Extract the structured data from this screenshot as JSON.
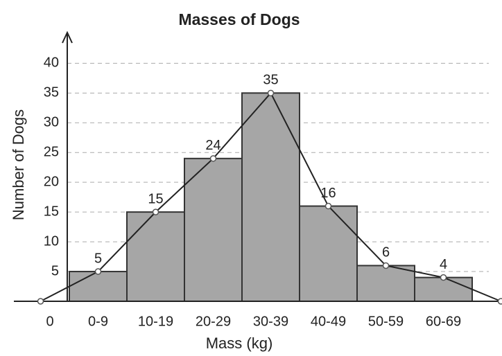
{
  "chart_data": {
    "type": "bar",
    "title": "Masses of Dogs",
    "x_label": "Mass (kg)",
    "y_label": "Number of Dogs",
    "categories": [
      "0",
      "0-9",
      "10-19",
      "20-29",
      "30-39",
      "40-49",
      "50-59",
      "60-69",
      null
    ],
    "values": [
      null,
      5,
      15,
      24,
      35,
      16,
      6,
      4,
      null
    ],
    "line_values": [
      0,
      5,
      15,
      24,
      35,
      16,
      6,
      4,
      0
    ],
    "color": "#a6a6a6",
    "ylim": [
      0,
      44
    ],
    "yticks": [
      5,
      10,
      15,
      20,
      25,
      30,
      35,
      40
    ],
    "grid": true
  }
}
